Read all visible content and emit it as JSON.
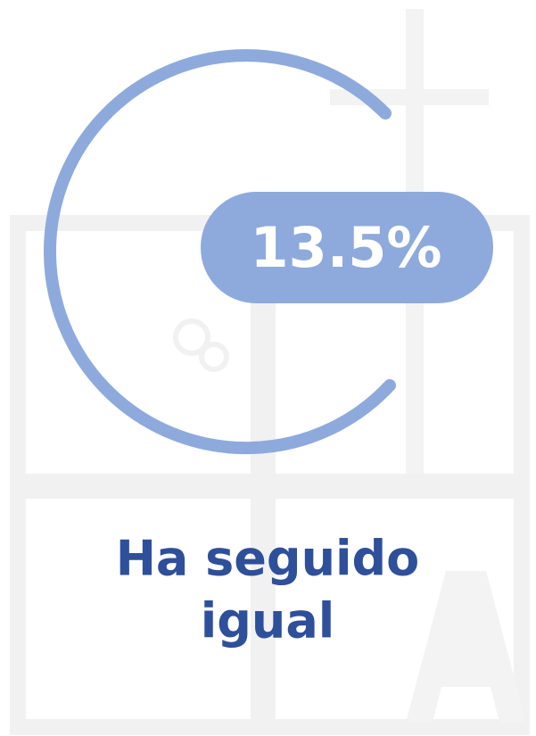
{
  "stat": {
    "value_label": "13.5%",
    "caption_lines": [
      "Ha seguido",
      "igual"
    ]
  }
}
